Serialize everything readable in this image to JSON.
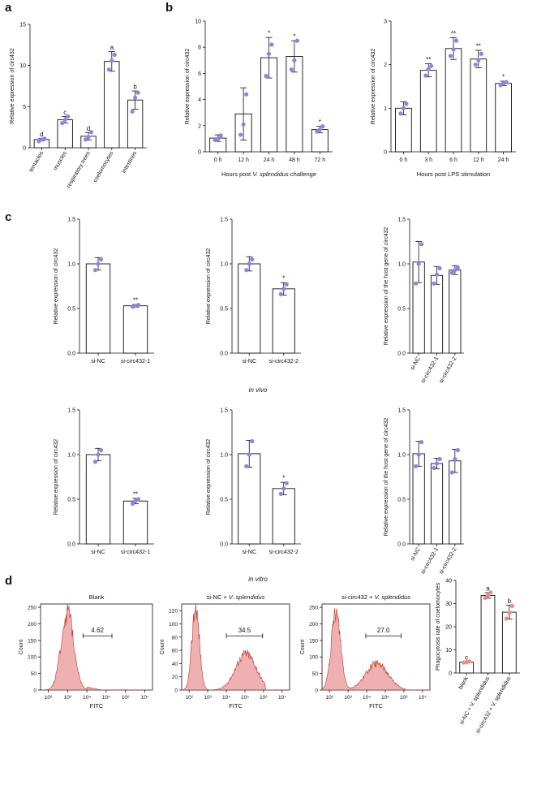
{
  "panel_labels": {
    "a": "a",
    "b": "b",
    "c": "c",
    "d": "d"
  },
  "captions": {
    "in_vivo": "in vivo",
    "in_vitro": "in vitro"
  },
  "colors": {
    "dot": "#8a86e6",
    "fill": "#e07070",
    "line": "#111111",
    "dot_d": "#ea8c8c"
  },
  "chart_data": [
    {
      "id": "a-tissue",
      "type": "bar",
      "categories": [
        "tentacles",
        "muscles",
        "respiratory trees",
        "coelomocytes",
        "intestines"
      ],
      "values": [
        1.0,
        3.4,
        1.4,
        10.5,
        5.8
      ],
      "errors": [
        0.15,
        0.4,
        0.45,
        1.2,
        1.1
      ],
      "points": [
        [
          0.8,
          1.0,
          1.1
        ],
        [
          3.0,
          3.4,
          3.8
        ],
        [
          1.0,
          1.3,
          1.9
        ],
        [
          9.5,
          10.6,
          11.3
        ],
        [
          4.4,
          6.1,
          6.7
        ]
      ],
      "sig": [
        "d",
        "c",
        "d",
        "a",
        "b"
      ],
      "ylabel": "Relative expression of circ432",
      "xlabel": "",
      "ylim": [
        0,
        15
      ],
      "yticks": [
        0,
        5,
        10,
        15
      ]
    },
    {
      "id": "b-vibrio",
      "type": "bar",
      "categories": [
        "0 h",
        "12 h",
        "24 h",
        "48 h",
        "72 h"
      ],
      "values": [
        1.05,
        2.9,
        7.2,
        7.3,
        1.7
      ],
      "errors": [
        0.25,
        2.0,
        1.55,
        1.2,
        0.25
      ],
      "points": [
        [
          0.9,
          1.0,
          1.25
        ],
        [
          1.3,
          2.1,
          4.4
        ],
        [
          5.8,
          7.5,
          8.2
        ],
        [
          6.3,
          7.0,
          8.5
        ],
        [
          1.55,
          1.7,
          1.95
        ]
      ],
      "sig": [
        "",
        "",
        "*",
        "*",
        "*"
      ],
      "ylabel": "Relative expression of circ432",
      "xlabel": "Hours post V. splendidus challenge",
      "ylim": [
        0,
        10
      ],
      "yticks": [
        0,
        2,
        4,
        6,
        8,
        10
      ]
    },
    {
      "id": "b-lps",
      "type": "bar",
      "categories": [
        "0 h",
        "3 h",
        "6 h",
        "12 h",
        "24 h"
      ],
      "values": [
        1.0,
        1.87,
        2.37,
        2.13,
        1.57
      ],
      "errors": [
        0.15,
        0.15,
        0.25,
        0.2,
        0.05
      ],
      "points": [
        [
          0.88,
          1.0,
          1.1
        ],
        [
          1.75,
          1.9,
          1.97
        ],
        [
          2.2,
          2.35,
          2.55
        ],
        [
          2.0,
          2.1,
          2.25
        ],
        [
          1.53,
          1.57,
          1.6
        ]
      ],
      "sig": [
        "",
        "**",
        "**",
        "**",
        "*"
      ],
      "ylabel": "Relative expression of circ432",
      "xlabel": "Hours post LPS stimulation",
      "ylim": [
        0,
        3
      ],
      "yticks": [
        0,
        1,
        2,
        3
      ]
    },
    {
      "id": "c-vivo-1",
      "type": "bar",
      "categories": [
        "si-NC",
        "si-circ432-1"
      ],
      "values": [
        1.0,
        0.53
      ],
      "errors": [
        0.07,
        0.015
      ],
      "points": [
        [
          0.93,
          1.0,
          1.05
        ],
        [
          0.52,
          0.53,
          0.54
        ]
      ],
      "sig": [
        "",
        "**"
      ],
      "ylabel": "Relative expression of circ432",
      "xlabel": "",
      "ylim": [
        0,
        1.5
      ],
      "yticks": [
        0.0,
        0.5,
        1.0,
        1.5
      ]
    },
    {
      "id": "c-vivo-2",
      "type": "bar",
      "categories": [
        "si-NC",
        "si-circ432-2"
      ],
      "values": [
        1.0,
        0.72
      ],
      "errors": [
        0.08,
        0.07
      ],
      "points": [
        [
          0.93,
          1.0,
          1.05
        ],
        [
          0.66,
          0.72,
          0.77
        ]
      ],
      "sig": [
        "",
        "*"
      ],
      "ylabel": "Relative expression of circ432",
      "xlabel": "",
      "ylim": [
        0,
        1.5
      ],
      "yticks": [
        0.0,
        0.5,
        1.0,
        1.5
      ]
    },
    {
      "id": "c-vivo-host",
      "type": "bar",
      "categories": [
        "si-NC",
        "si-circ432-1",
        "si-circ432-2"
      ],
      "values": [
        1.02,
        0.87,
        0.93
      ],
      "errors": [
        0.23,
        0.1,
        0.05
      ],
      "points": [
        [
          0.78,
          1.0,
          1.22
        ],
        [
          0.78,
          0.88,
          0.95
        ],
        [
          0.9,
          0.93,
          0.96
        ]
      ],
      "sig": [
        "",
        "",
        ""
      ],
      "ylabel": "Relative expression of the host gene of circ432",
      "xlabel": "",
      "ylim": [
        0,
        1.5
      ],
      "yticks": [
        0.0,
        0.5,
        1.0,
        1.5
      ]
    },
    {
      "id": "c-vitro-1",
      "type": "bar",
      "categories": [
        "si-NC",
        "si-circ432-1"
      ],
      "values": [
        1.0,
        0.48
      ],
      "errors": [
        0.07,
        0.03
      ],
      "points": [
        [
          0.92,
          1.0,
          1.05
        ],
        [
          0.45,
          0.48,
          0.5
        ]
      ],
      "sig": [
        "",
        "**"
      ],
      "ylabel": "Relative expression of circ432",
      "xlabel": "",
      "ylim": [
        0,
        1.5
      ],
      "yticks": [
        0.0,
        0.5,
        1.0,
        1.5
      ]
    },
    {
      "id": "c-vitro-2",
      "type": "bar",
      "categories": [
        "si-NC",
        "si-circ432-2"
      ],
      "values": [
        1.01,
        0.62
      ],
      "errors": [
        0.15,
        0.07
      ],
      "points": [
        [
          0.87,
          1.0,
          1.15
        ],
        [
          0.56,
          0.62,
          0.68
        ]
      ],
      "sig": [
        "",
        "*"
      ],
      "ylabel": "Relative expression of circ432",
      "xlabel": "",
      "ylim": [
        0,
        1.5
      ],
      "yticks": [
        0.0,
        0.5,
        1.0,
        1.5
      ]
    },
    {
      "id": "c-vitro-host",
      "type": "bar",
      "categories": [
        "si-NC",
        "si-circ432-1",
        "si-circ432-2"
      ],
      "values": [
        1.01,
        0.9,
        0.93
      ],
      "errors": [
        0.14,
        0.06,
        0.13
      ],
      "points": [
        [
          0.87,
          1.0,
          1.14
        ],
        [
          0.85,
          0.9,
          0.95
        ],
        [
          0.8,
          0.95,
          1.05
        ]
      ],
      "sig": [
        "",
        "",
        ""
      ],
      "ylabel": "Relative expression of the host gene of circ432",
      "xlabel": "",
      "ylim": [
        0,
        1.5
      ],
      "yticks": [
        0.0,
        0.5,
        1.0,
        1.5
      ]
    },
    {
      "id": "d-blank",
      "type": "area",
      "title": "Blank",
      "xlabel": "FITC",
      "ylabel": "Count",
      "xticks": [
        "10²",
        "10³",
        "10⁴",
        "10⁵",
        "10⁶",
        "10⁷"
      ],
      "x_log_range": [
        1.6,
        7.4
      ],
      "yticks": [
        0,
        50,
        100,
        150,
        200,
        250
      ],
      "ylim": [
        0,
        260
      ],
      "gate_label": "4.62",
      "gate_range": [
        3.8,
        5.3
      ],
      "peaks": [
        {
          "center": 3.0,
          "height": 235,
          "width": 0.33
        }
      ],
      "tail": [
        {
          "from": 4.0,
          "to": 4.8,
          "level": 8
        }
      ]
    },
    {
      "id": "d-sinc",
      "type": "area",
      "title": "si-NC + V. splendidus",
      "xlabel": "FITC",
      "ylabel": "Count",
      "xticks": [
        "10²",
        "10³",
        "10⁴",
        "10⁵",
        "10⁶",
        "10⁷"
      ],
      "x_log_range": [
        1.6,
        7.4
      ],
      "yticks": [
        0,
        20,
        40,
        60,
        80,
        100,
        120
      ],
      "ylim": [
        0,
        130
      ],
      "gate_label": "34.5",
      "gate_range": [
        4.0,
        5.95
      ],
      "peaks": [
        {
          "center": 2.35,
          "height": 125,
          "width": 0.2
        },
        {
          "center": 5.05,
          "height": 55,
          "width": 0.55
        }
      ],
      "tail": []
    },
    {
      "id": "d-sicirc",
      "type": "area",
      "title": "si-circ432 + V. splendidus",
      "xlabel": "FITC",
      "ylabel": "Count",
      "xticks": [
        "10²",
        "10³",
        "10⁴",
        "10⁵",
        "10⁶",
        "10⁷"
      ],
      "x_log_range": [
        1.6,
        7.4
      ],
      "yticks": [
        0,
        50,
        100,
        150,
        200,
        250
      ],
      "ylim": [
        0,
        260
      ],
      "gate_label": "27.0",
      "gate_range": [
        3.95,
        5.85
      ],
      "peaks": [
        {
          "center": 2.35,
          "height": 235,
          "width": 0.25
        },
        {
          "center": 4.55,
          "height": 80,
          "width": 0.6
        }
      ],
      "tail": []
    },
    {
      "id": "d-phago",
      "type": "bar",
      "categories": [
        "blank",
        "si-NC + V. splendidus",
        "si-circ432 + V. splendidus"
      ],
      "values": [
        4.7,
        33.5,
        26.3
      ],
      "errors": [
        0.3,
        1.2,
        3.0
      ],
      "points": [
        [
          4.5,
          4.7,
          5.0
        ],
        [
          32.5,
          33.5,
          34.8
        ],
        [
          23.5,
          26.0,
          29.0
        ]
      ],
      "sig": [
        "c",
        "a",
        "b"
      ],
      "ylabel": "Phagocytosis rate of coelomocytes",
      "xlabel": "",
      "ylim": [
        0,
        40
      ],
      "yticks": [
        0,
        10,
        20,
        30,
        40
      ]
    }
  ]
}
